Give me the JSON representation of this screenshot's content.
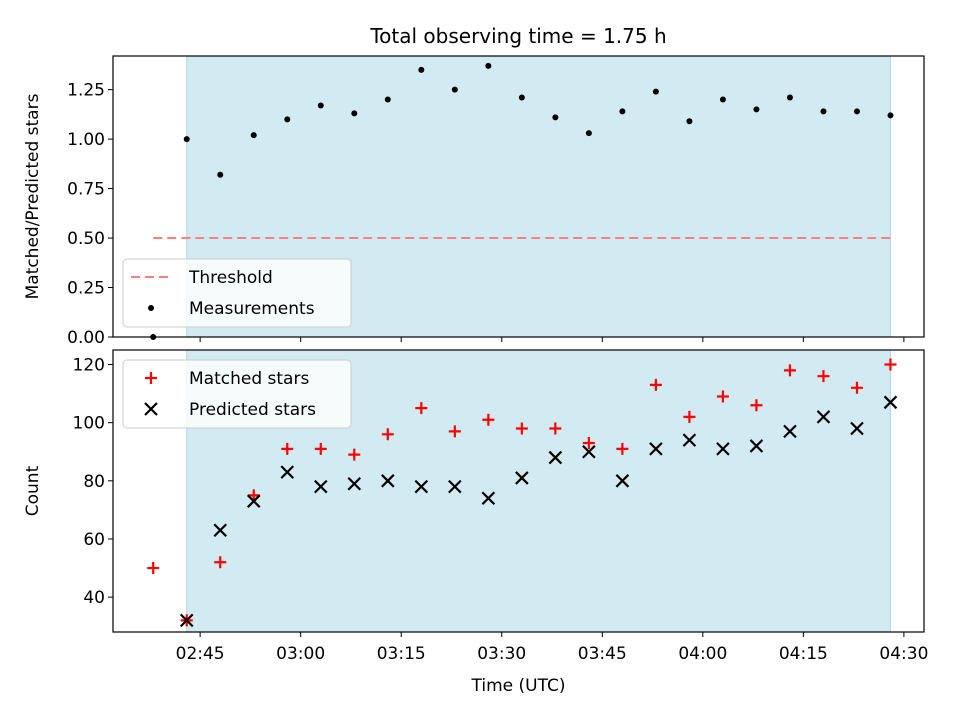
{
  "chart_data": [
    {
      "type": "scatter",
      "title": "Total observing time = 1.75 h",
      "ylabel": "Matched/Predicted stars",
      "ylim": [
        0,
        1.42
      ],
      "yticks": [
        0.0,
        0.25,
        0.5,
        0.75,
        1.0,
        1.25
      ],
      "ytick_labels": [
        "0.00",
        "0.25",
        "0.50",
        "0.75",
        "1.00",
        "1.25"
      ],
      "x_range": [
        "02:32",
        "04:33"
      ],
      "shaded_span": [
        "02:43",
        "04:28"
      ],
      "shade_color": "#add8e6",
      "legend_loc": "lower left",
      "series": [
        {
          "name": "Threshold",
          "kind": "dashed-line",
          "color": "#ff7f7f",
          "x": [
            "02:38",
            "04:28"
          ],
          "y": [
            0.5,
            0.5
          ]
        },
        {
          "name": "Measurements",
          "kind": "dot",
          "color": "#000000",
          "x": [
            "02:38",
            "02:43",
            "02:48",
            "02:53",
            "02:58",
            "03:03",
            "03:08",
            "03:13",
            "03:18",
            "03:23",
            "03:28",
            "03:33",
            "03:38",
            "03:43",
            "03:48",
            "03:53",
            "03:58",
            "04:03",
            "04:08",
            "04:13",
            "04:18",
            "04:23",
            "04:28"
          ],
          "y": [
            0.0,
            1.0,
            0.82,
            1.02,
            1.1,
            1.17,
            1.13,
            1.2,
            1.35,
            1.25,
            1.37,
            1.21,
            1.11,
            1.03,
            1.14,
            1.24,
            1.09,
            1.2,
            1.15,
            1.21,
            1.14,
            1.14,
            1.12
          ]
        }
      ]
    },
    {
      "type": "scatter",
      "xlabel": "Time (UTC)",
      "ylabel": "Count",
      "ylim": [
        28,
        125
      ],
      "yticks": [
        40,
        60,
        80,
        100,
        120
      ],
      "ytick_labels": [
        "40",
        "60",
        "80",
        "100",
        "120"
      ],
      "x_range": [
        "02:32",
        "04:33"
      ],
      "xticks": [
        "02:45",
        "03:00",
        "03:15",
        "03:30",
        "03:45",
        "04:00",
        "04:15",
        "04:30"
      ],
      "shaded_span": [
        "02:43",
        "04:28"
      ],
      "shade_color": "#add8e6",
      "legend_loc": "upper left",
      "series": [
        {
          "name": "Matched stars",
          "marker": "plus",
          "color": "#ff0000",
          "x": [
            "02:38",
            "02:43",
            "02:48",
            "02:53",
            "02:58",
            "03:03",
            "03:08",
            "03:13",
            "03:18",
            "03:23",
            "03:28",
            "03:33",
            "03:38",
            "03:43",
            "03:48",
            "03:53",
            "03:58",
            "04:03",
            "04:08",
            "04:13",
            "04:18",
            "04:23",
            "04:28"
          ],
          "y": [
            50,
            32,
            52,
            75,
            91,
            91,
            89,
            96,
            105,
            97,
            101,
            98,
            98,
            93,
            91,
            113,
            102,
            109,
            106,
            118,
            116,
            112,
            120
          ]
        },
        {
          "name": "Predicted stars",
          "marker": "x",
          "color": "#000000",
          "x": [
            "02:43",
            "02:48",
            "02:53",
            "02:58",
            "03:03",
            "03:08",
            "03:13",
            "03:18",
            "03:23",
            "03:28",
            "03:33",
            "03:38",
            "03:43",
            "03:48",
            "03:53",
            "03:58",
            "04:03",
            "04:08",
            "04:13",
            "04:18",
            "04:23",
            "04:28"
          ],
          "y": [
            32,
            63,
            73,
            83,
            78,
            79,
            80,
            78,
            78,
            74,
            81,
            88,
            90,
            80,
            91,
            94,
            91,
            92,
            97,
            102,
            98,
            107
          ]
        }
      ]
    }
  ]
}
